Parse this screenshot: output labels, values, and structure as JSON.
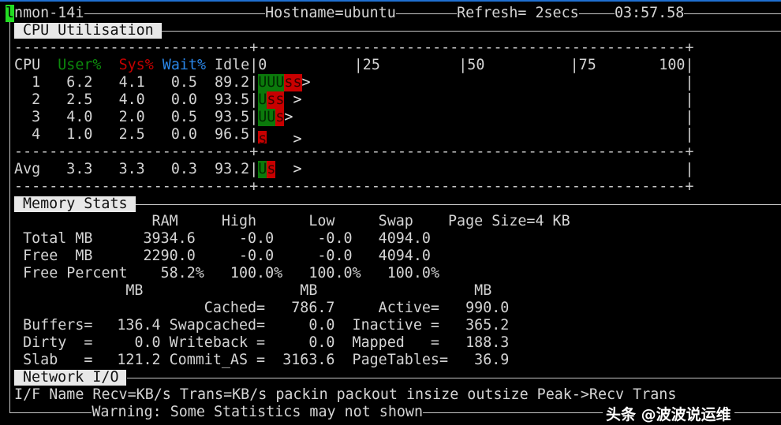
{
  "header": {
    "cursor_char": "l",
    "program": "nmon-14i",
    "hostname": "Hostname=ubuntu",
    "refresh": "Refresh= 2secs",
    "time": "03:57.58"
  },
  "cpu": {
    "title": "CPU Utilisation",
    "dashes": "-----------------------------------------------------------------------------",
    "dash_plus_col": "+",
    "headers": {
      "cpu": "CPU",
      "user": "User%",
      "sys": "Sys%",
      "wait": "Wait%",
      "idle": "Idle"
    },
    "scale": {
      "s0": "|0",
      "s25": "|25",
      "s50": "|50",
      "s75": "|75",
      "s100": "100|"
    },
    "pipe": "|",
    "rows": [
      {
        "cpu": "1",
        "user": "6.2",
        "sys": "4.1",
        "wait": "0.5",
        "idle": "89.2",
        "bar_user": "UUU",
        "bar_sys": "ss",
        "bar_marker": ">"
      },
      {
        "cpu": "2",
        "user": "2.5",
        "sys": "4.0",
        "wait": "0.0",
        "idle": "93.5",
        "bar_user": "U",
        "bar_sys": "ss",
        "bar_marker": " >"
      },
      {
        "cpu": "3",
        "user": "4.0",
        "sys": "2.0",
        "wait": "0.5",
        "idle": "93.5",
        "bar_user": "UU",
        "bar_sys": "s",
        "bar_marker": ">"
      },
      {
        "cpu": "4",
        "user": "1.0",
        "sys": "2.5",
        "wait": "0.0",
        "idle": "96.5",
        "bar_user": "",
        "bar_sys": "s",
        "bar_marker": "   >"
      }
    ],
    "avg": {
      "cpu": "Avg",
      "user": "3.3",
      "sys": "3.3",
      "wait": "0.3",
      "idle": "93.2",
      "bar_user": "U",
      "bar_sys": "s",
      "bar_marker": "  >"
    },
    "colors": {
      "user": "#0c8a0c",
      "sys": "#c40000",
      "wait": "#2a86e8"
    }
  },
  "memory": {
    "title": "Memory Stats",
    "headers": {
      "ram": "RAM",
      "high": "High",
      "low": "Low",
      "swap": "Swap",
      "page_size": "Page Size=4 KB"
    },
    "total": {
      "label": "Total MB",
      "ram": "3934.6",
      "high": "-0.0",
      "low": "-0.0",
      "swap": "4094.0"
    },
    "free": {
      "label": "Free  MB",
      "ram": "2290.0",
      "high": "-0.0",
      "low": "-0.0",
      "swap": "4094.0"
    },
    "free_percent": {
      "label": "Free Percent",
      "ram": "58.2%",
      "high": "100.0%",
      "low": "100.0%",
      "swap": "100.0%"
    },
    "units": {
      "u1": "MB",
      "u2": "MB",
      "u3": "MB"
    },
    "cached": {
      "label": "Cached=",
      "value": "786.7"
    },
    "active": {
      "label": "Active=",
      "value": "990.0"
    },
    "buffers": {
      "label": "Buffers=",
      "value": "136.4"
    },
    "swapcached": {
      "label": "Swapcached=",
      "value": "0.0"
    },
    "inactive": {
      "label": "Inactive =",
      "value": "365.2"
    },
    "dirty": {
      "label": "Dirty  =",
      "value": "0.0"
    },
    "writeback": {
      "label": "Writeback =",
      "value": "0.0"
    },
    "mapped": {
      "label": "Mapped   =",
      "value": "188.3"
    },
    "slab": {
      "label": "Slab   =",
      "value": "121.2"
    },
    "commit_as": {
      "label": "Commit_AS =",
      "value": "3163.6"
    },
    "pagetables": {
      "label": "PageTables=",
      "value": "36.9"
    }
  },
  "network": {
    "title": "Network I/O",
    "columns": "I/F Name Recv=KB/s Trans=KB/s packin packout insize outsize Peak->Recv Trans"
  },
  "footer": {
    "warning": "Warning: Some Statistics may not shown"
  },
  "watermark": "头条 @波波说运维"
}
